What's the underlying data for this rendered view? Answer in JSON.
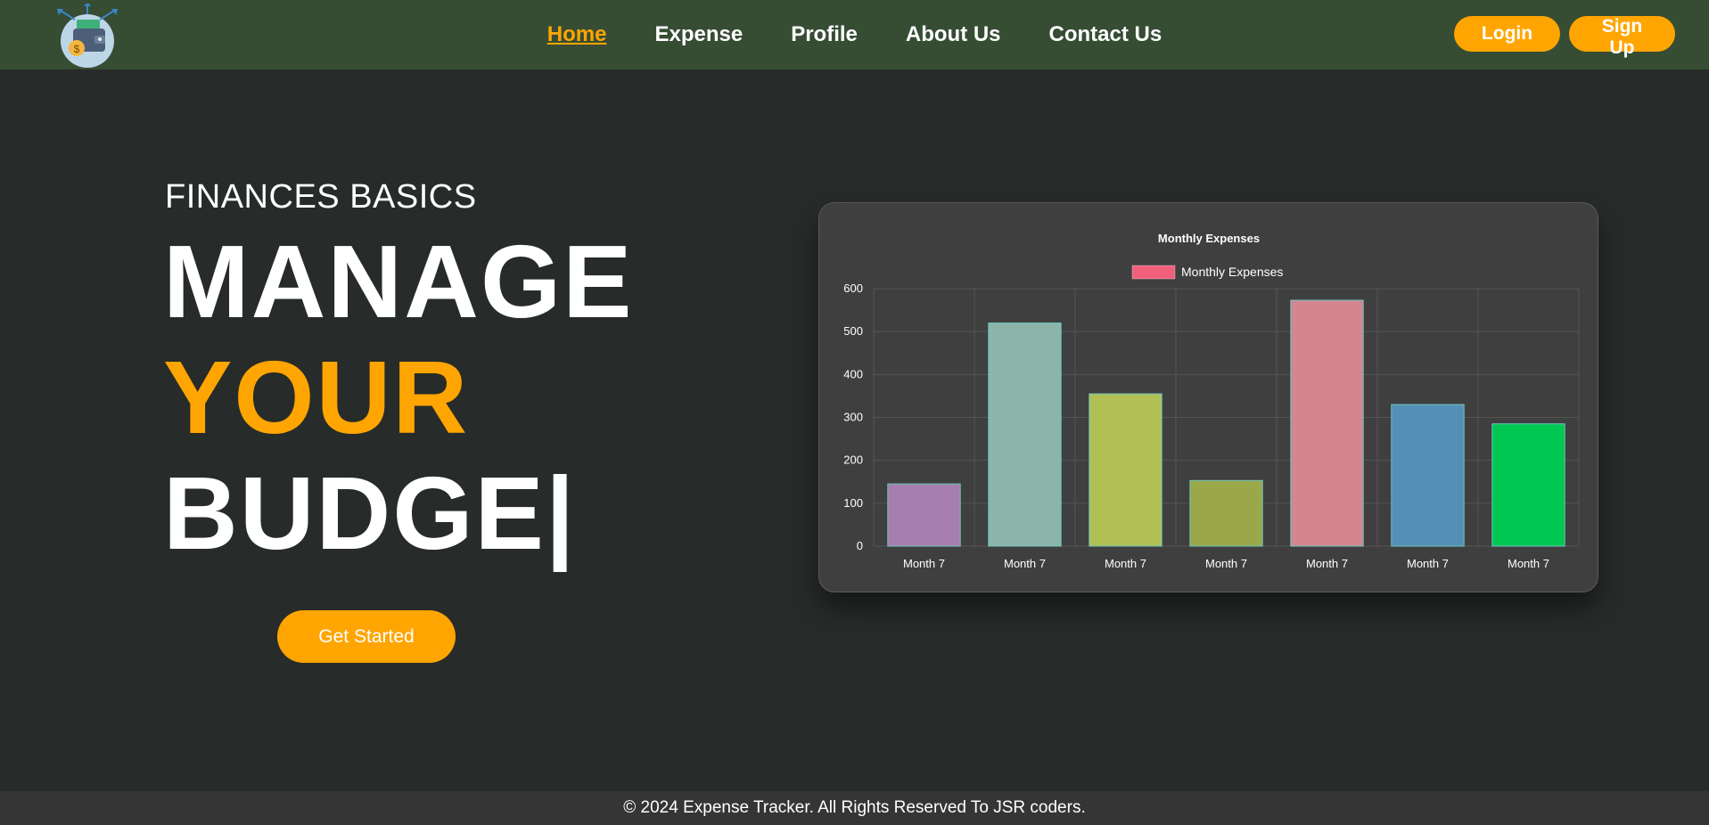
{
  "nav": {
    "links": [
      {
        "label": "Home",
        "active": true
      },
      {
        "label": "Expense",
        "active": false
      },
      {
        "label": "Profile",
        "active": false
      },
      {
        "label": "About Us",
        "active": false
      },
      {
        "label": "Contact Us",
        "active": false
      }
    ],
    "login_label": "Login",
    "signup_label": "Sign Up",
    "logo_icon": "wallet-icon"
  },
  "hero": {
    "subtitle": "FINANCES BASICS",
    "line1": "MANAGE",
    "line2": "YOUR",
    "line3": "BUDGE|",
    "cta_label": "Get Started"
  },
  "colors": {
    "accent": "#ffa502",
    "navbar": "#364d34",
    "background": "#272b29",
    "card": "#3f3f3f"
  },
  "chart_data": {
    "type": "bar",
    "title": "Monthly Expenses",
    "legend": [
      {
        "name": "Monthly Expenses",
        "color": "#f0607a"
      }
    ],
    "legend_position": "top",
    "categories": [
      "Month 7",
      "Month 7",
      "Month 7",
      "Month 7",
      "Month 7",
      "Month 7",
      "Month 7"
    ],
    "series": [
      {
        "name": "Monthly Expenses",
        "values": [
          145,
          520,
          355,
          153,
          573,
          330,
          285
        ],
        "colors": [
          "#a67eb0",
          "#8cb5aa",
          "#b0c055",
          "#9aa84a",
          "#d48590",
          "#5490b5",
          "#00c853"
        ]
      }
    ],
    "yticks": [
      0,
      100,
      200,
      300,
      400,
      500,
      600
    ],
    "ylim": [
      0,
      600
    ],
    "grid": true
  },
  "footer": {
    "text": "© 2024 Expense Tracker. All Rights Reserved To JSR coders."
  }
}
